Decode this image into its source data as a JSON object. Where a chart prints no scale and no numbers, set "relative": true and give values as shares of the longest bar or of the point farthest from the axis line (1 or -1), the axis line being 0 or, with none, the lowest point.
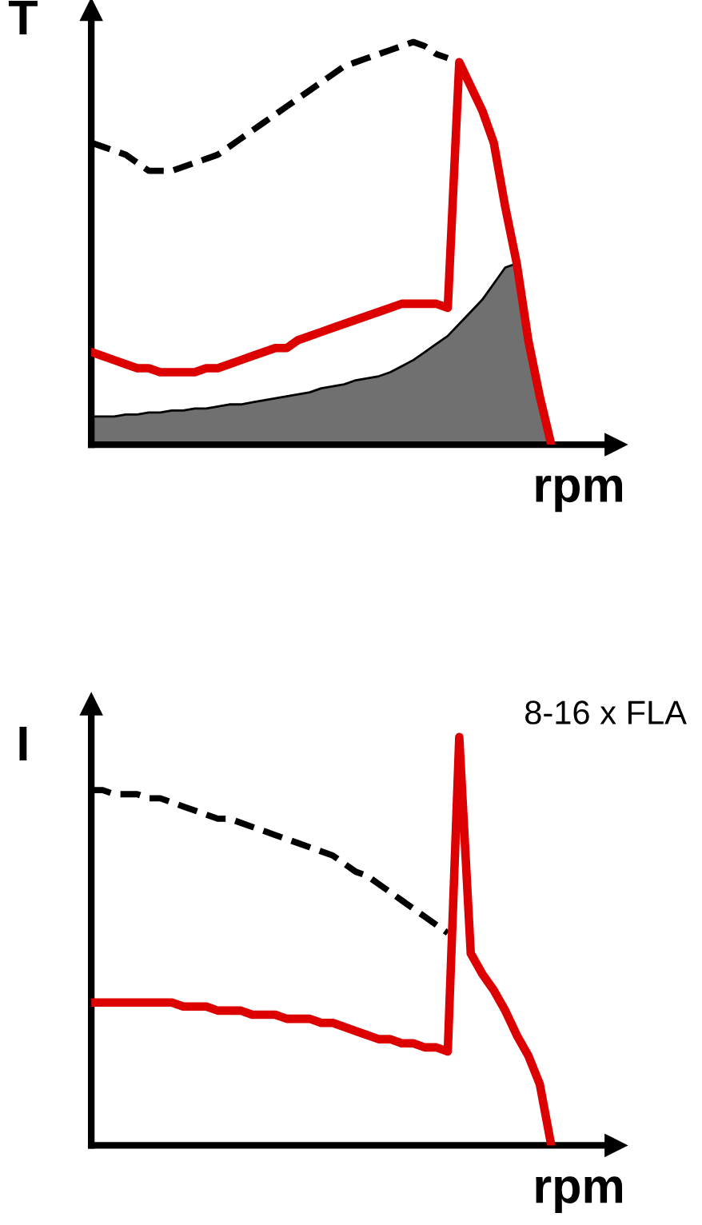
{
  "chart_data": [
    {
      "type": "line",
      "relative": true,
      "xlabel": "rpm",
      "ylabel": "T",
      "categories": [
        null,
        null,
        null,
        null,
        null,
        null,
        null,
        null,
        null,
        null,
        null,
        null,
        null,
        null,
        null,
        null,
        null,
        null,
        null,
        null,
        null,
        null,
        null,
        null,
        null,
        null,
        null,
        null,
        null,
        null,
        null,
        null,
        null,
        null,
        null,
        null,
        null,
        null,
        null,
        null,
        null
      ],
      "series": [
        {
          "type": "area",
          "color": "#707070",
          "values": [
            0.07,
            0.07,
            0.07,
            0.075,
            0.075,
            0.08,
            0.08,
            0.085,
            0.085,
            0.09,
            0.09,
            0.095,
            0.1,
            0.1,
            0.105,
            0.11,
            0.115,
            0.12,
            0.125,
            0.13,
            0.14,
            0.145,
            0.15,
            0.16,
            0.165,
            0.17,
            0.18,
            0.195,
            0.21,
            0.23,
            0.25,
            0.27,
            0.3,
            0.33,
            0.36,
            0.4,
            0.44,
            0.45,
            0.26,
            0.12,
            0
          ]
        },
        {
          "color": "#000000",
          "line_style": "dashed",
          "values": [
            0.75,
            0.74,
            0.73,
            0.72,
            0.7,
            0.68,
            0.68,
            0.68,
            0.69,
            0.7,
            0.71,
            0.72,
            0.74,
            0.76,
            0.78,
            0.8,
            0.82,
            0.84,
            0.86,
            0.88,
            0.9,
            0.92,
            0.94,
            0.95,
            0.96,
            0.97,
            0.98,
            0.99,
            1.0,
            0.99,
            0.97,
            0.96,
            null,
            null,
            null,
            null,
            null,
            null,
            null,
            null,
            null
          ]
        },
        {
          "color": "#dd0000",
          "line_style": "solid",
          "values": [
            0.23,
            0.22,
            0.21,
            0.2,
            0.19,
            0.19,
            0.18,
            0.18,
            0.18,
            0.18,
            0.19,
            0.19,
            0.2,
            0.21,
            0.22,
            0.23,
            0.24,
            0.24,
            0.26,
            0.27,
            0.28,
            0.29,
            0.3,
            0.31,
            0.32,
            0.33,
            0.34,
            0.35,
            0.35,
            0.35,
            0.35,
            0.34,
            0.95,
            0.89,
            0.83,
            0.75,
            0.59,
            0.45,
            0.26,
            0.12,
            0
          ]
        }
      ]
    },
    {
      "type": "line",
      "relative": true,
      "xlabel": "rpm",
      "ylabel": "I",
      "annotations": [
        "8-16 x FLA"
      ],
      "categories": [
        null,
        null,
        null,
        null,
        null,
        null,
        null,
        null,
        null,
        null,
        null,
        null,
        null,
        null,
        null,
        null,
        null,
        null,
        null,
        null,
        null,
        null,
        null,
        null,
        null,
        null,
        null,
        null,
        null,
        null,
        null,
        null,
        null,
        null,
        null,
        null,
        null,
        null,
        null,
        null,
        null
      ],
      "series": [
        {
          "color": "#000000",
          "line_style": "dashed",
          "values": [
            0.87,
            0.87,
            0.86,
            0.86,
            0.86,
            0.85,
            0.85,
            0.84,
            0.83,
            0.82,
            0.81,
            0.8,
            0.8,
            0.79,
            0.78,
            0.77,
            0.76,
            0.75,
            0.74,
            0.73,
            0.72,
            0.71,
            0.69,
            0.67,
            0.66,
            0.64,
            0.62,
            0.6,
            0.58,
            0.56,
            0.54,
            0.52,
            null,
            null,
            null,
            null,
            null,
            null,
            null,
            null,
            null
          ]
        },
        {
          "color": "#dd0000",
          "line_style": "solid",
          "values": [
            0.35,
            0.35,
            0.35,
            0.35,
            0.35,
            0.35,
            0.35,
            0.35,
            0.34,
            0.34,
            0.34,
            0.33,
            0.33,
            0.33,
            0.32,
            0.32,
            0.32,
            0.31,
            0.31,
            0.31,
            0.3,
            0.3,
            0.29,
            0.28,
            0.27,
            0.26,
            0.26,
            0.25,
            0.25,
            0.24,
            0.24,
            0.23,
            1.0,
            0.47,
            0.42,
            0.38,
            0.33,
            0.27,
            0.22,
            0.15,
            0
          ]
        }
      ]
    }
  ]
}
